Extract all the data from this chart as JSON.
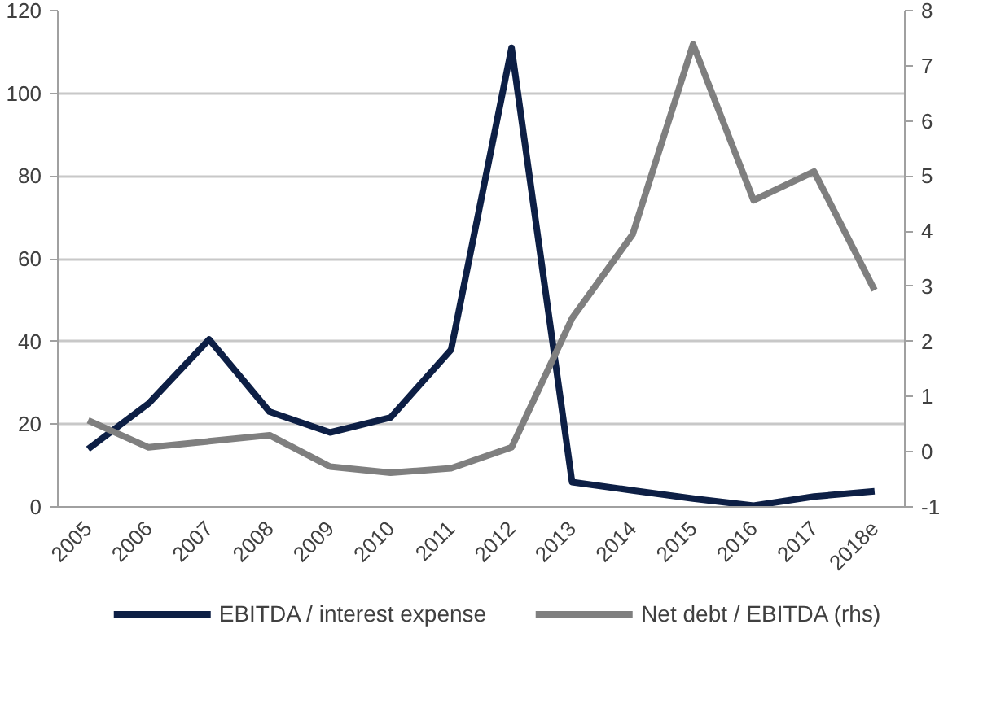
{
  "chart_data": {
    "type": "line",
    "categories": [
      "2005",
      "2006",
      "2007",
      "2008",
      "2009",
      "2010",
      "2011",
      "2012",
      "2013",
      "2014",
      "2015",
      "2016",
      "2017",
      "2018e"
    ],
    "series": [
      {
        "name": "EBITDA / interest expense",
        "color": "#0d1f45",
        "values": [
          14,
          25,
          40.5,
          23,
          18,
          21.6,
          38,
          111,
          6,
          4,
          2,
          0.3,
          2.5,
          3.8
        ]
      },
      {
        "name": "Net debt / EBITDA (rhs)",
        "color": "#7f7f7f",
        "axis": "y2",
        "values": [
          0.57,
          0.08,
          0.19,
          0.3,
          -0.27,
          -0.38,
          -0.3,
          0.08,
          2.42,
          3.94,
          7.39,
          4.56,
          5.08,
          2.93
        ]
      }
    ],
    "ylim": [
      0,
      120
    ],
    "yticks": [
      0,
      20,
      40,
      60,
      80,
      100,
      120
    ],
    "y2lim": [
      -1,
      8
    ],
    "y2ticks": [
      -1,
      0,
      1,
      2,
      3,
      4,
      5,
      6,
      7,
      8
    ],
    "grid": "y",
    "legend": "bottom",
    "marker": "none",
    "line_style": "solid"
  }
}
